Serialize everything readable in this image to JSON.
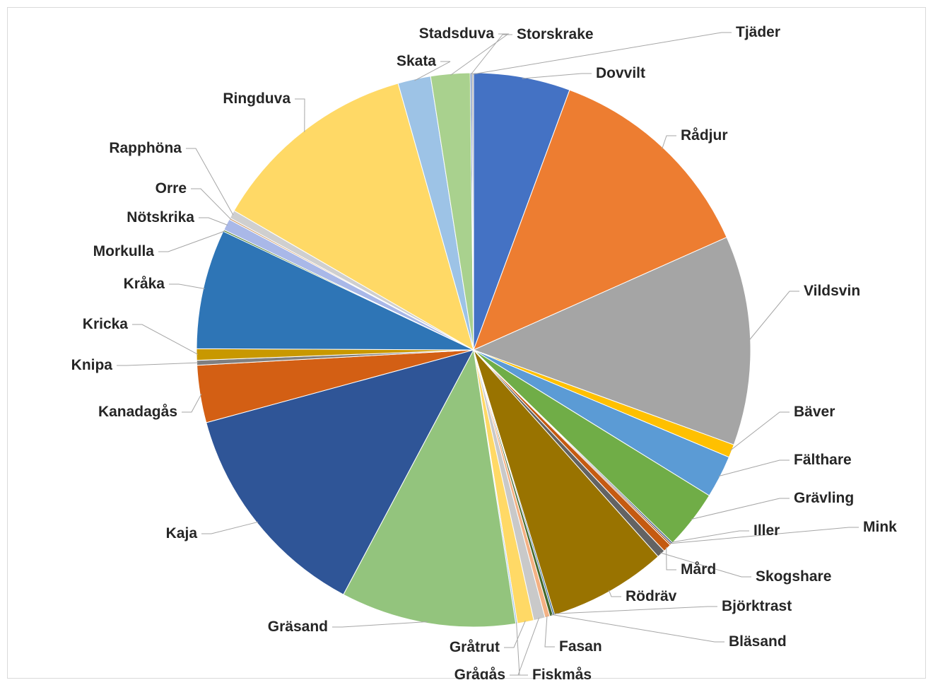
{
  "chart_data": {
    "type": "pie",
    "title": "",
    "start": "top",
    "direction": "clockwise",
    "legend": "none",
    "data_labels": "category name with leader lines",
    "slices": [
      {
        "label": "Dovvilt",
        "value": 5.9,
        "color": "#4472c4"
      },
      {
        "label": "Rådjur",
        "value": 13.3,
        "color": "#ed7d31"
      },
      {
        "label": "Vildsvin",
        "value": 12.8,
        "color": "#a5a5a5"
      },
      {
        "label": "Bäver",
        "value": 0.8,
        "color": "#ffc000"
      },
      {
        "label": "Fälthare",
        "value": 2.6,
        "color": "#5b9bd5"
      },
      {
        "label": "Grävling",
        "value": 3.6,
        "color": "#70ad47"
      },
      {
        "label": "Iller",
        "value": 0.1,
        "color": "#264478"
      },
      {
        "label": "Mink",
        "value": 0.1,
        "color": "#9e480e"
      },
      {
        "label": "Mård",
        "value": 0.5,
        "color": "#c55a11"
      },
      {
        "label": "Skogshare",
        "value": 0.5,
        "color": "#636363"
      },
      {
        "label": "Rödräv",
        "value": 7.2,
        "color": "#997300"
      },
      {
        "label": "Björktrast",
        "value": 0.1,
        "color": "#255e91"
      },
      {
        "label": "Bläsand",
        "value": 0.2,
        "color": "#43682b"
      },
      {
        "label": "Fasan",
        "value": 0.3,
        "color": "#f4b183"
      },
      {
        "label": "Fiskmås",
        "value": 0.7,
        "color": "#c9c9c9"
      },
      {
        "label": "Gråtrut",
        "value": 1.0,
        "color": "#ffd966"
      },
      {
        "label": "Grågås",
        "value": 0.1,
        "color": "#9dc3e6"
      },
      {
        "label": "Gräsand",
        "value": 10.7,
        "color": "#93c47d"
      },
      {
        "label": "Kaja",
        "value": 13.6,
        "color": "#2f5597"
      },
      {
        "label": "Kanadagås",
        "value": 3.5,
        "color": "#d35f14"
      },
      {
        "label": "Knipa",
        "value": 0.3,
        "color": "#7f7f7f"
      },
      {
        "label": "Kricka",
        "value": 0.7,
        "color": "#c89800"
      },
      {
        "label": "Kråka",
        "value": 7.3,
        "color": "#2e75b6"
      },
      {
        "label": "Morkulla",
        "value": 0.1,
        "color": "#548235"
      },
      {
        "label": "Nötskrika",
        "value": 0.7,
        "color": "#a9b8e8"
      },
      {
        "label": "Orre",
        "value": 0.1,
        "color": "#d0a070"
      },
      {
        "label": "Rapphöna",
        "value": 0.5,
        "color": "#cfcfcf"
      },
      {
        "label": "Ringduva",
        "value": 12.8,
        "color": "#ffd966"
      },
      {
        "label": "Skata",
        "value": 2.0,
        "color": "#9dc3e6"
      },
      {
        "label": "Stadsduva",
        "value": 2.4,
        "color": "#a9d18e"
      },
      {
        "label": "Storskrake",
        "value": 0.1,
        "color": "#4a6fb0"
      },
      {
        "label": "Tjäder",
        "value": 0.1,
        "color": "#a5a5a5"
      }
    ]
  }
}
